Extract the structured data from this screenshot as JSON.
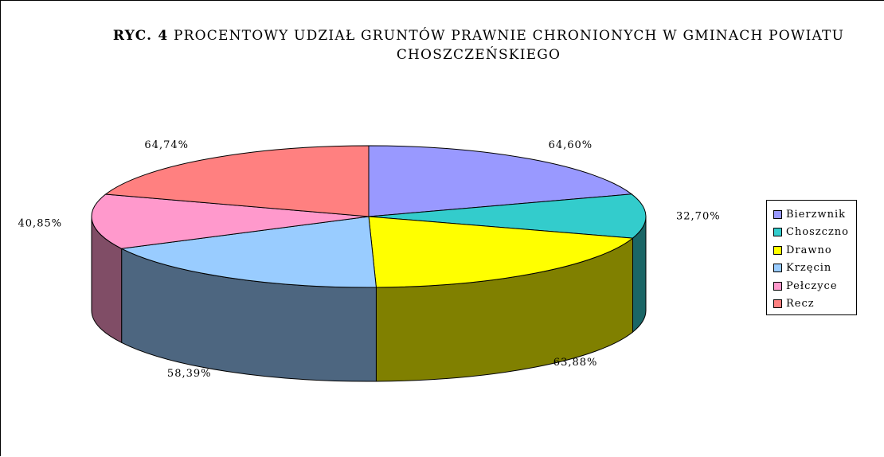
{
  "title_prefix": "RYC. 4",
  "title_text": "PROCENTOWY UDZIAŁ GRUNTÓW PRAWNIE CHRONIONYCH W GMINACH POWIATU CHOSZCZEŃSKIEGO",
  "chart_data": {
    "type": "pie",
    "title": "RYC. 4 PROCENTOWY UDZIAŁ GRUNTÓW PRAWNIE CHRONIONYCH W GMINACH POWIATU CHOSZCZEŃSKIEGO",
    "legend_position": "right",
    "three_d": true,
    "slices": [
      {
        "name": "Bierzwnik",
        "value": 64.6,
        "label": "64,60%",
        "color": "#9999FF"
      },
      {
        "name": "Choszczno",
        "value": 32.7,
        "label": "32,70%",
        "color": "#33CCCC"
      },
      {
        "name": "Drawno",
        "value": 63.88,
        "label": "63,88%",
        "color": "#FFFF00"
      },
      {
        "name": "Krzęcin",
        "value": 58.39,
        "label": "58,39%",
        "color": "#99CCFF"
      },
      {
        "name": "Pełczyce",
        "value": 40.85,
        "label": "40,85%",
        "color": "#FF99CC"
      },
      {
        "name": "Recz",
        "value": 64.74,
        "label": "64,74%",
        "color": "#FF8080"
      }
    ]
  }
}
